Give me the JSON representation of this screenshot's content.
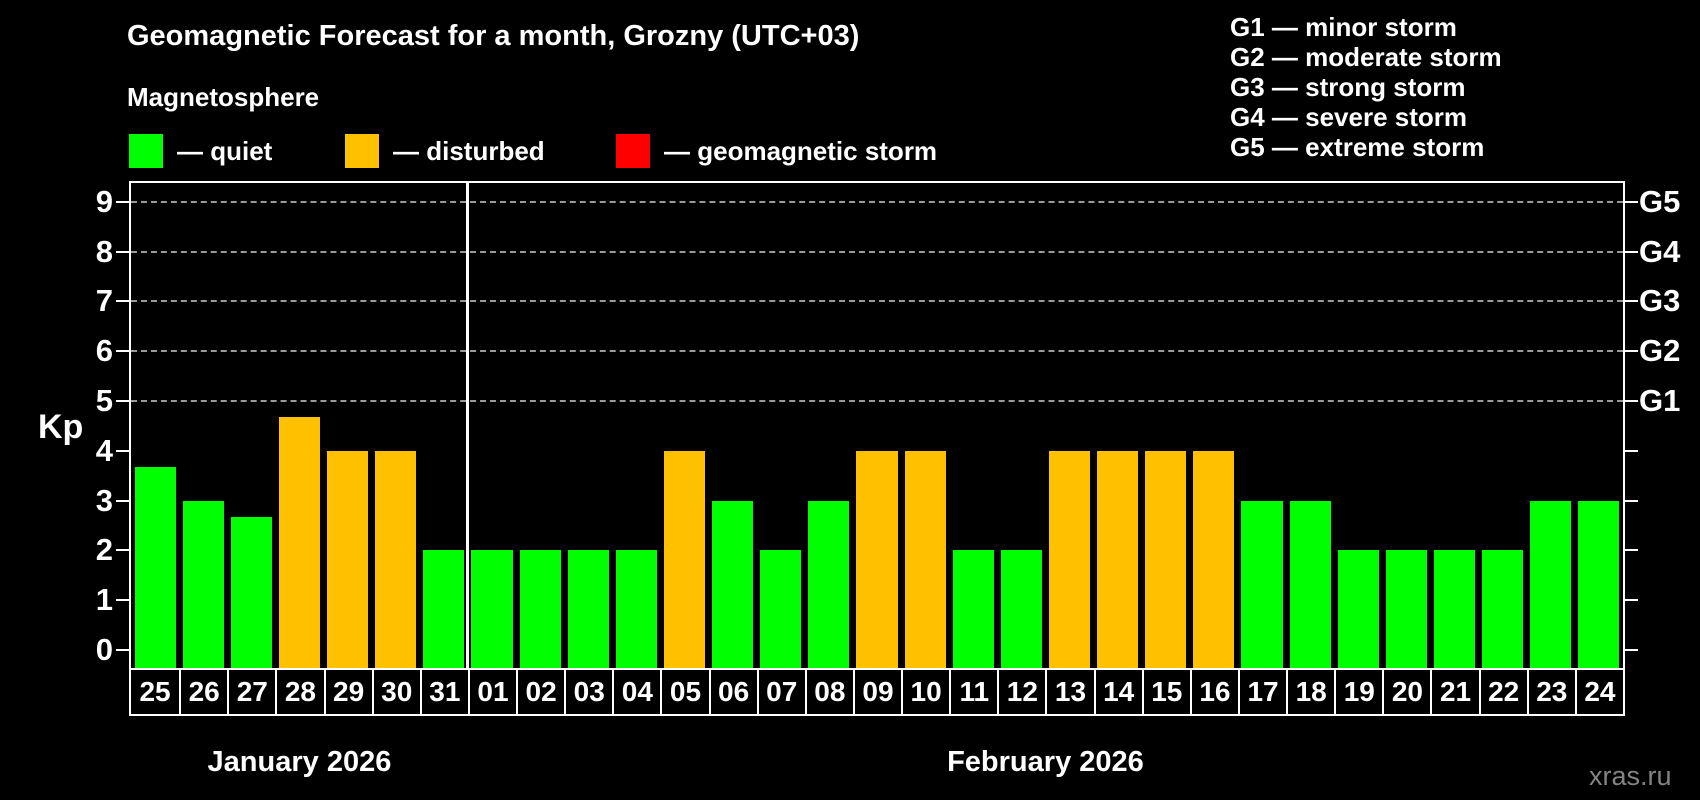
{
  "header": {
    "title": "Geomagnetic Forecast for a month, Grozny (UTC+03)",
    "subtitle": "Magnetosphere",
    "watermark": "xras.ru"
  },
  "legend": {
    "items": [
      {
        "name": "quiet",
        "label": "— quiet",
        "color": "#00ff00"
      },
      {
        "name": "disturbed",
        "label": "— disturbed",
        "color": "#ffc000"
      },
      {
        "name": "geomagnetic-storm",
        "label": "— geomagnetic storm",
        "color": "#ff0000"
      }
    ]
  },
  "storm_legend": {
    "items": [
      "G1 — minor storm",
      "G2 — moderate storm",
      "G3 — strong storm",
      "G4 — severe storm",
      "G5 — extreme storm"
    ]
  },
  "chart_data": {
    "type": "bar",
    "title": "Geomagnetic Forecast for a month, Grozny (UTC+03)",
    "subtitle": "Magnetosphere",
    "xlabel": "",
    "ylabel": "Kp",
    "ylim": [
      -0.36,
      9.38
    ],
    "grid": "dashed horizontal at Kp 5-9 only",
    "grid_levels": [
      5,
      6,
      7,
      8,
      9
    ],
    "yticks": [
      0,
      1,
      2,
      3,
      4,
      5,
      6,
      7,
      8,
      9
    ],
    "categories": [
      "25",
      "26",
      "27",
      "28",
      "29",
      "30",
      "31",
      "01",
      "02",
      "03",
      "04",
      "05",
      "06",
      "07",
      "08",
      "09",
      "10",
      "11",
      "12",
      "13",
      "14",
      "15",
      "16",
      "17",
      "18",
      "19",
      "20",
      "21",
      "22",
      "23",
      "24"
    ],
    "values": [
      3.67,
      3,
      2.67,
      4.67,
      4,
      4,
      2,
      2,
      2,
      2,
      2,
      4,
      3,
      2,
      3,
      4,
      4,
      2,
      2,
      4,
      4,
      4,
      4,
      3,
      3,
      2,
      2,
      2,
      2,
      3,
      3
    ],
    "statuses": [
      "quiet",
      "quiet",
      "quiet",
      "disturbed",
      "disturbed",
      "disturbed",
      "quiet",
      "quiet",
      "quiet",
      "quiet",
      "quiet",
      "disturbed",
      "quiet",
      "quiet",
      "quiet",
      "disturbed",
      "disturbed",
      "quiet",
      "quiet",
      "disturbed",
      "disturbed",
      "disturbed",
      "disturbed",
      "quiet",
      "quiet",
      "quiet",
      "quiet",
      "quiet",
      "quiet",
      "quiet",
      "quiet"
    ],
    "colors": {
      "quiet": "#00ff00",
      "disturbed": "#ffc000",
      "storm": "#ff0000"
    },
    "month_groups": [
      {
        "label": "January 2026",
        "count": 7
      },
      {
        "label": "February 2026",
        "count": 24
      }
    ],
    "right_axis": [
      {
        "label": "G1",
        "level": 5
      },
      {
        "label": "G2",
        "level": 6
      },
      {
        "label": "G3",
        "level": 7
      },
      {
        "label": "G4",
        "level": 8
      },
      {
        "label": "G5",
        "level": 9
      }
    ],
    "legend_position": "top-left",
    "watermark": "xras.ru"
  }
}
